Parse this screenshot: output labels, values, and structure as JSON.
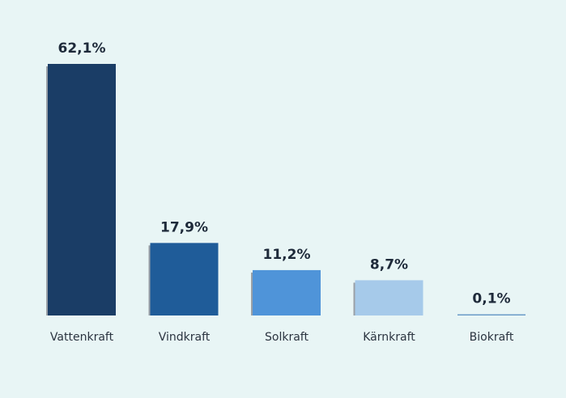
{
  "chart_data": {
    "type": "bar",
    "categories": [
      "Vattenkraft",
      "Vindkraft",
      "Solkraft",
      "Kärnkraft",
      "Biokraft"
    ],
    "values": [
      62.1,
      17.9,
      11.2,
      8.7,
      0.1
    ],
    "value_labels": [
      "62,1%",
      "17,9%",
      "11,2%",
      "8,7%",
      "0,1%"
    ],
    "colors": [
      "#1a3d66",
      "#1f5c99",
      "#4f94d9",
      "#a6caea",
      "#6a9bc8"
    ],
    "shadow_color": "#9aa0a6",
    "background": "#e8f5f5",
    "ylim": [
      0,
      62.1
    ],
    "grid": false,
    "legend": "none"
  }
}
